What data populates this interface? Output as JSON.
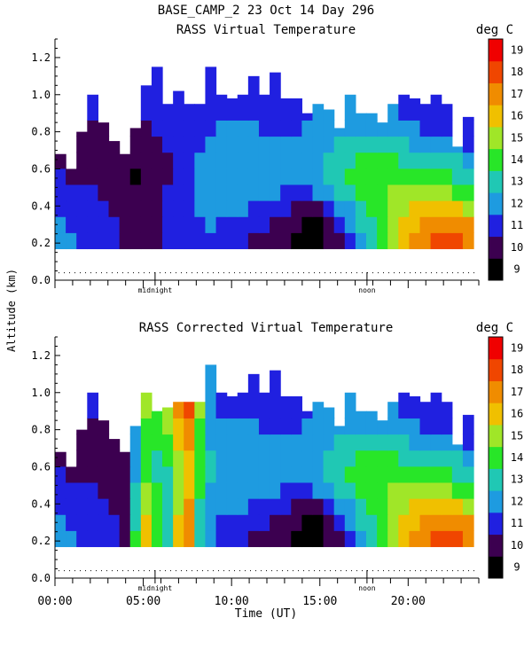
{
  "header": {
    "title": "BASE_CAMP_2  23 Oct 14 Day 296",
    "ylabel": "Altitude (km)",
    "xlabel": "Time (UT)",
    "units": "deg C"
  },
  "chart_data": [
    {
      "type": "heatmap",
      "title": "RASS Virtual Temperature",
      "ylim": [
        0,
        1.3
      ],
      "xlim": [
        0,
        24
      ],
      "yticks": [
        "0.0",
        "0.2",
        "0.4",
        "0.6",
        "0.8",
        "1.0",
        "1.2"
      ],
      "markers": [
        {
          "label": "midnight",
          "x": 5.67
        },
        {
          "label": "noon",
          "x": 17.67
        }
      ],
      "colorbar": {
        "labels": [
          "9",
          "10",
          "11",
          "12",
          "13",
          "14",
          "15",
          "16",
          "17",
          "18",
          "19"
        ],
        "colors": [
          "#000000",
          "#3c0050",
          "#2020e0",
          "#1e9be0",
          "#20c8b4",
          "#28e628",
          "#a0e628",
          "#f0c000",
          "#f08c00",
          "#f04600",
          "#f00000"
        ]
      },
      "base_km": 0.17,
      "top_km": [
        0.68,
        0.6,
        0.8,
        1.0,
        0.85,
        0.75,
        0.68,
        0.82,
        1.05,
        1.15,
        0.95,
        1.02,
        0.95,
        0.95,
        1.15,
        1.0,
        0.98,
        1.0,
        1.1,
        1.0,
        1.12,
        0.98,
        0.98,
        0.9,
        0.95,
        0.92,
        0.82,
        1.0,
        0.9,
        0.9,
        0.85,
        0.95,
        1.0,
        0.98,
        0.95,
        1.0,
        0.95,
        0.72,
        0.88
      ],
      "temperature_c": [
        [
          12.2,
          12.0,
          11.9,
          11.8,
          11.5,
          11.2,
          10.6,
          10.4,
          10.4,
          10.7,
          11.0,
          11.2,
          11.6,
          11.8,
          11.8,
          11.6,
          11.4,
          11.1,
          10.8,
          10.6,
          10.4,
          10.0,
          9.6,
          9.4,
          9.5,
          10.0,
          10.8,
          11.6,
          12.6,
          13.6,
          14.6,
          15.6,
          16.5,
          17.2,
          17.8,
          18.3,
          18.4,
          18.2,
          17.8
        ],
        [
          12.0,
          11.9,
          11.7,
          11.6,
          11.3,
          11.0,
          10.6,
          10.3,
          10.4,
          10.7,
          11.0,
          11.3,
          11.7,
          11.9,
          12.0,
          11.9,
          11.7,
          11.5,
          11.2,
          11.0,
          10.7,
          10.3,
          10.0,
          9.8,
          9.9,
          10.4,
          11.2,
          12.1,
          13.0,
          13.9,
          14.8,
          15.6,
          16.2,
          16.8,
          17.2,
          17.5,
          17.6,
          17.4,
          17.0
        ],
        [
          11.6,
          11.5,
          11.4,
          11.2,
          11.0,
          10.8,
          10.5,
          10.3,
          10.4,
          10.7,
          11.0,
          11.4,
          11.8,
          12.1,
          12.3,
          12.3,
          12.2,
          12.0,
          11.8,
          11.6,
          11.3,
          11.0,
          10.8,
          10.7,
          10.9,
          11.4,
          12.1,
          12.9,
          13.6,
          14.3,
          14.9,
          15.4,
          15.8,
          16.1,
          16.3,
          16.4,
          16.3,
          16.0,
          15.6
        ],
        [
          11.3,
          11.2,
          11.1,
          11.0,
          10.8,
          10.6,
          10.3,
          10.1,
          10.4,
          10.7,
          11.0,
          11.4,
          11.9,
          12.2,
          12.5,
          12.6,
          12.6,
          12.5,
          12.4,
          12.3,
          12.1,
          11.9,
          11.8,
          11.8,
          12.0,
          12.5,
          13.0,
          13.6,
          14.1,
          14.5,
          14.8,
          15.0,
          15.2,
          15.3,
          15.3,
          15.2,
          15.0,
          14.8,
          14.5
        ],
        [
          11.0,
          10.9,
          10.8,
          10.8,
          10.6,
          10.4,
          10.1,
          9.9,
          10.2,
          10.6,
          10.9,
          11.3,
          11.8,
          12.2,
          12.5,
          12.7,
          12.8,
          12.8,
          12.7,
          12.6,
          12.5,
          12.4,
          12.4,
          12.5,
          12.8,
          13.2,
          13.6,
          14.0,
          14.3,
          14.5,
          14.6,
          14.6,
          14.6,
          14.5,
          14.4,
          14.3,
          14.1,
          13.9,
          13.7
        ],
        [
          10.8,
          10.7,
          10.7,
          10.6,
          10.5,
          10.4,
          10.2,
          10.1,
          10.3,
          10.6,
          10.9,
          11.2,
          11.6,
          12.0,
          12.3,
          12.5,
          12.6,
          12.6,
          12.6,
          12.5,
          12.4,
          12.3,
          12.4,
          12.6,
          12.9,
          13.2,
          13.5,
          13.8,
          14.0,
          14.1,
          14.1,
          14.0,
          13.9,
          13.8,
          13.6,
          13.4,
          13.2,
          13.0,
          12.8
        ],
        [
          10.7,
          10.7,
          10.7,
          10.7,
          10.6,
          10.5,
          10.4,
          10.4,
          10.6,
          10.8,
          11.0,
          11.2,
          11.5,
          11.8,
          12.1,
          12.3,
          12.4,
          12.4,
          12.3,
          12.2,
          12.1,
          12.0,
          12.1,
          12.3,
          12.6,
          12.9,
          13.1,
          13.3,
          13.4,
          13.4,
          13.3,
          13.2,
          13.0,
          12.8,
          12.6,
          12.4,
          12.2,
          12.0,
          11.8
        ],
        [
          10.8,
          10.8,
          10.8,
          10.8,
          10.8,
          10.7,
          10.7,
          10.7,
          10.9,
          11.0,
          11.1,
          11.2,
          11.4,
          11.6,
          11.8,
          12.0,
          12.1,
          12.1,
          12.0,
          11.9,
          11.8,
          11.8,
          11.9,
          12.1,
          12.3,
          12.5,
          12.6,
          12.7,
          12.7,
          12.7,
          12.6,
          12.5,
          12.3,
          12.1,
          11.9,
          11.7,
          11.5,
          11.4,
          11.3
        ],
        [
          11.0,
          11.0,
          11.0,
          11.0,
          11.0,
          10.9,
          10.9,
          10.9,
          11.0,
          11.1,
          11.1,
          11.2,
          11.3,
          11.4,
          11.6,
          11.7,
          11.8,
          11.8,
          11.8,
          11.7,
          11.6,
          11.6,
          11.7,
          11.9,
          12.0,
          12.2,
          12.3,
          12.3,
          12.3,
          12.2,
          12.1,
          12.0,
          11.8,
          11.6,
          11.4,
          11.3,
          11.2,
          11.1,
          11.0
        ]
      ]
    },
    {
      "type": "heatmap",
      "title": "RASS Corrected Virtual Temperature",
      "ylim": [
        0,
        1.3
      ],
      "xlim": [
        0,
        24
      ],
      "yticks": [
        "0.0",
        "0.2",
        "0.4",
        "0.6",
        "0.8",
        "1.0",
        "1.2"
      ],
      "xticks": [
        "00:00",
        "05:00",
        "10:00",
        "15:00",
        "20:00"
      ],
      "markers": [
        {
          "label": "midnight",
          "x": 5.67
        },
        {
          "label": "noon",
          "x": 17.67
        }
      ],
      "colorbar": {
        "labels": [
          "9",
          "10",
          "11",
          "12",
          "13",
          "14",
          "15",
          "16",
          "17",
          "18",
          "19"
        ],
        "colors": [
          "#000000",
          "#3c0050",
          "#2020e0",
          "#1e9be0",
          "#20c8b4",
          "#28e628",
          "#a0e628",
          "#f0c000",
          "#f08c00",
          "#f04600",
          "#f00000"
        ]
      },
      "base_km": 0.17,
      "top_km": [
        0.68,
        0.6,
        0.8,
        1.0,
        0.85,
        0.75,
        0.68,
        0.82,
        1.0,
        0.9,
        0.92,
        0.95,
        0.95,
        0.95,
        1.15,
        1.0,
        0.98,
        1.0,
        1.1,
        1.0,
        1.12,
        0.98,
        0.98,
        0.9,
        0.95,
        0.92,
        0.82,
        1.0,
        0.9,
        0.9,
        0.85,
        0.95,
        1.0,
        0.98,
        0.95,
        1.0,
        0.95,
        0.72,
        0.88
      ],
      "temperature_c": [
        [
          12.2,
          12.0,
          11.9,
          11.8,
          11.5,
          11.2,
          10.6,
          14.0,
          16.5,
          14.8,
          13.2,
          16.2,
          17.6,
          13.6,
          12.0,
          11.6,
          11.4,
          11.1,
          10.8,
          10.6,
          10.4,
          10.0,
          9.6,
          9.4,
          9.5,
          10.0,
          10.8,
          11.6,
          12.6,
          13.6,
          14.6,
          15.6,
          16.5,
          17.2,
          17.8,
          18.3,
          18.4,
          18.2,
          17.8
        ],
        [
          12.0,
          11.9,
          11.7,
          11.6,
          11.3,
          11.0,
          10.6,
          13.8,
          16.2,
          14.6,
          13.2,
          16.0,
          17.4,
          13.6,
          12.2,
          11.9,
          11.7,
          11.5,
          11.2,
          11.0,
          10.7,
          10.3,
          10.0,
          9.8,
          9.9,
          10.4,
          11.2,
          12.1,
          13.0,
          13.9,
          14.8,
          15.6,
          16.2,
          16.8,
          17.2,
          17.5,
          17.6,
          17.4,
          17.0
        ],
        [
          11.6,
          11.5,
          11.4,
          11.2,
          11.0,
          10.8,
          10.5,
          13.5,
          15.8,
          14.4,
          13.4,
          15.8,
          17.0,
          13.8,
          12.5,
          12.3,
          12.2,
          12.0,
          11.8,
          11.6,
          11.3,
          11.0,
          10.8,
          10.7,
          10.9,
          11.4,
          12.1,
          12.9,
          13.6,
          14.3,
          14.9,
          15.4,
          15.8,
          16.1,
          16.3,
          16.4,
          16.3,
          16.0,
          15.6
        ],
        [
          11.3,
          11.2,
          11.1,
          11.0,
          10.8,
          10.6,
          10.3,
          13.0,
          15.2,
          14.0,
          13.6,
          15.6,
          16.6,
          14.0,
          12.8,
          12.6,
          12.6,
          12.5,
          12.4,
          12.3,
          12.1,
          11.9,
          11.8,
          11.8,
          12.0,
          12.5,
          13.0,
          13.6,
          14.1,
          14.5,
          14.8,
          15.0,
          15.2,
          15.3,
          15.3,
          15.2,
          15.0,
          14.8,
          14.5
        ],
        [
          11.0,
          10.9,
          10.8,
          10.8,
          10.6,
          10.4,
          10.1,
          12.6,
          14.8,
          13.8,
          13.8,
          15.6,
          16.4,
          14.2,
          13.0,
          12.7,
          12.8,
          12.8,
          12.7,
          12.6,
          12.5,
          12.4,
          12.4,
          12.5,
          12.8,
          13.2,
          13.6,
          14.0,
          14.3,
          14.5,
          14.6,
          14.6,
          14.6,
          14.5,
          14.4,
          14.3,
          14.1,
          13.9,
          13.7
        ],
        [
          10.8,
          10.7,
          10.7,
          10.6,
          10.5,
          10.4,
          10.2,
          12.4,
          14.6,
          13.8,
          14.0,
          15.8,
          16.6,
          14.4,
          13.0,
          12.5,
          12.6,
          12.6,
          12.6,
          12.5,
          12.4,
          12.3,
          12.4,
          12.6,
          12.9,
          13.2,
          13.5,
          13.8,
          14.0,
          14.1,
          14.1,
          14.0,
          13.9,
          13.8,
          13.6,
          13.4,
          13.2,
          13.0,
          12.8
        ],
        [
          10.7,
          10.7,
          10.7,
          10.7,
          10.6,
          10.5,
          10.4,
          12.4,
          14.6,
          14.0,
          14.4,
          16.2,
          17.0,
          14.6,
          12.8,
          12.3,
          12.4,
          12.4,
          12.3,
          12.2,
          12.1,
          12.0,
          12.1,
          12.3,
          12.6,
          12.9,
          13.1,
          13.3,
          13.4,
          13.4,
          13.3,
          13.2,
          13.0,
          12.8,
          12.6,
          12.4,
          12.2,
          12.0,
          11.8
        ],
        [
          10.8,
          10.8,
          10.8,
          10.8,
          10.8,
          10.7,
          10.7,
          12.6,
          14.8,
          14.4,
          15.0,
          16.6,
          17.4,
          14.8,
          12.6,
          12.0,
          12.1,
          12.1,
          12.0,
          11.9,
          11.8,
          11.8,
          11.9,
          12.1,
          12.3,
          12.5,
          12.6,
          12.7,
          12.7,
          12.7,
          12.6,
          12.5,
          12.3,
          12.1,
          11.9,
          11.7,
          11.5,
          11.4,
          11.3
        ],
        [
          11.0,
          11.0,
          11.0,
          11.0,
          11.0,
          10.9,
          10.9,
          12.8,
          15.0,
          14.8,
          15.6,
          17.2,
          18.0,
          15.2,
          12.6,
          11.7,
          11.8,
          11.8,
          11.8,
          11.7,
          11.6,
          11.6,
          11.7,
          11.9,
          12.0,
          12.2,
          12.3,
          12.3,
          12.3,
          12.2,
          12.1,
          12.0,
          11.8,
          11.6,
          11.4,
          11.3,
          11.2,
          11.1,
          11.0
        ]
      ]
    }
  ]
}
